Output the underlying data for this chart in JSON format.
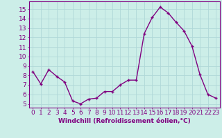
{
  "x": [
    0,
    1,
    2,
    3,
    4,
    5,
    6,
    7,
    8,
    9,
    10,
    11,
    12,
    13,
    14,
    15,
    16,
    17,
    18,
    19,
    20,
    21,
    22,
    23
  ],
  "y": [
    8.4,
    7.1,
    8.6,
    7.9,
    7.3,
    5.3,
    5.0,
    5.5,
    5.6,
    6.3,
    6.3,
    7.0,
    7.5,
    7.5,
    12.4,
    14.1,
    15.2,
    14.6,
    13.6,
    12.7,
    11.1,
    8.1,
    6.0,
    5.6
  ],
  "line_color": "#800080",
  "marker": "P",
  "marker_size": 2.5,
  "bg_color": "#cceee8",
  "grid_color": "#b0d8d8",
  "xlabel": "Windchill (Refroidissement éolien,°C)",
  "ylabel_ticks": [
    5,
    6,
    7,
    8,
    9,
    10,
    11,
    12,
    13,
    14,
    15
  ],
  "ylim": [
    4.6,
    15.8
  ],
  "xlim": [
    -0.5,
    23.5
  ],
  "tick_color": "#800080",
  "label_color": "#800080",
  "xlabel_fontsize": 6.5,
  "tick_fontsize": 6.5,
  "linewidth": 1.0
}
